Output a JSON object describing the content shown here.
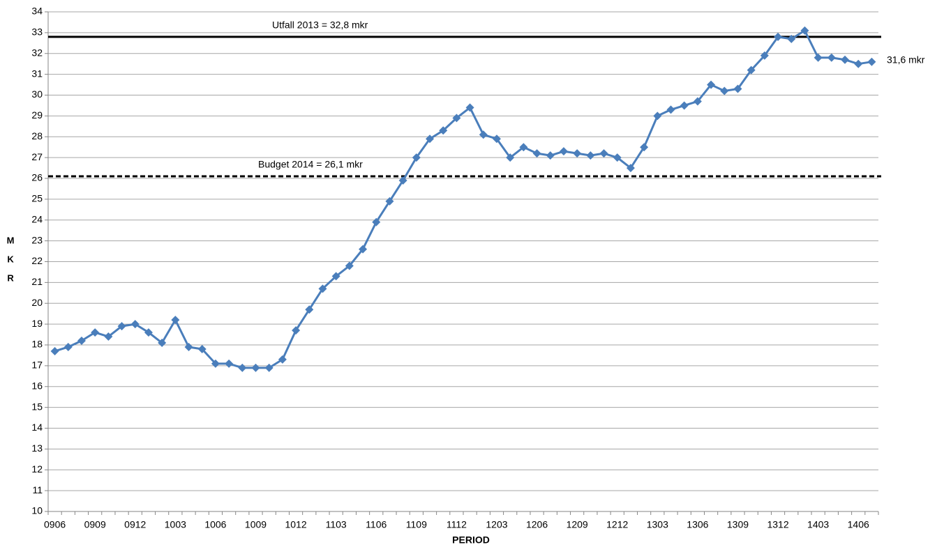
{
  "chart_data": {
    "type": "line",
    "x_label": "PERIOD",
    "y_label": "MKR",
    "color": "#4a7ebb",
    "categories": [
      "0906",
      null,
      null,
      "0909",
      null,
      null,
      "0912",
      null,
      null,
      "1003",
      null,
      null,
      "1006",
      null,
      null,
      "1009",
      null,
      null,
      "1012",
      null,
      null,
      "1103",
      null,
      null,
      "1106",
      null,
      null,
      "1109",
      null,
      null,
      "1112",
      null,
      null,
      "1203",
      null,
      null,
      "1206",
      null,
      null,
      "1209",
      null,
      null,
      "1212",
      null,
      null,
      "1303",
      null,
      null,
      "1306",
      null,
      null,
      "1309",
      null,
      null,
      "1312",
      null,
      null,
      "1403",
      null,
      null,
      "1406",
      null
    ],
    "values": [
      17.7,
      17.9,
      18.2,
      18.6,
      18.4,
      18.9,
      19.0,
      18.6,
      18.1,
      19.2,
      17.9,
      17.8,
      17.1,
      17.1,
      16.9,
      16.9,
      16.9,
      17.3,
      18.7,
      19.7,
      20.7,
      21.3,
      21.8,
      22.6,
      23.9,
      24.9,
      25.9,
      27.0,
      27.9,
      28.3,
      28.9,
      29.4,
      28.1,
      27.9,
      27.0,
      27.5,
      27.2,
      27.1,
      27.3,
      27.2,
      27.1,
      27.2,
      27.0,
      26.5,
      27.5,
      29.0,
      29.3,
      29.5,
      29.7,
      30.5,
      30.2,
      30.3,
      31.2,
      31.9,
      32.8,
      32.7,
      33.1,
      31.8,
      31.8,
      31.7,
      31.5,
      31.6
    ],
    "value_labels": [
      null,
      null,
      null,
      null,
      null,
      null,
      null,
      null,
      null,
      null,
      null,
      null,
      null,
      null,
      null,
      null,
      null,
      null,
      null,
      null,
      null,
      null,
      null,
      null,
      null,
      null,
      null,
      null,
      null,
      null,
      null,
      null,
      null,
      null,
      null,
      null,
      null,
      null,
      null,
      null,
      null,
      null,
      null,
      null,
      null,
      null,
      null,
      null,
      null,
      null,
      null,
      null,
      null,
      null,
      null,
      null,
      null,
      null,
      null,
      null,
      null,
      "31,6 mkr"
    ],
    "reference_lines": [
      {
        "label": "Utfall 2013 = 32,8 mkr",
        "value": 32.8,
        "style": "solid"
      },
      {
        "label": "Budget 2014 =  26,1 mkr",
        "value": 26.1,
        "style": "dashed"
      }
    ],
    "ylim": [
      10,
      34
    ],
    "yticks": [
      10,
      11,
      12,
      13,
      14,
      15,
      16,
      17,
      18,
      19,
      20,
      21,
      22,
      23,
      24,
      25,
      26,
      27,
      28,
      29,
      30,
      31,
      32,
      33,
      34
    ],
    "grid": true
  }
}
